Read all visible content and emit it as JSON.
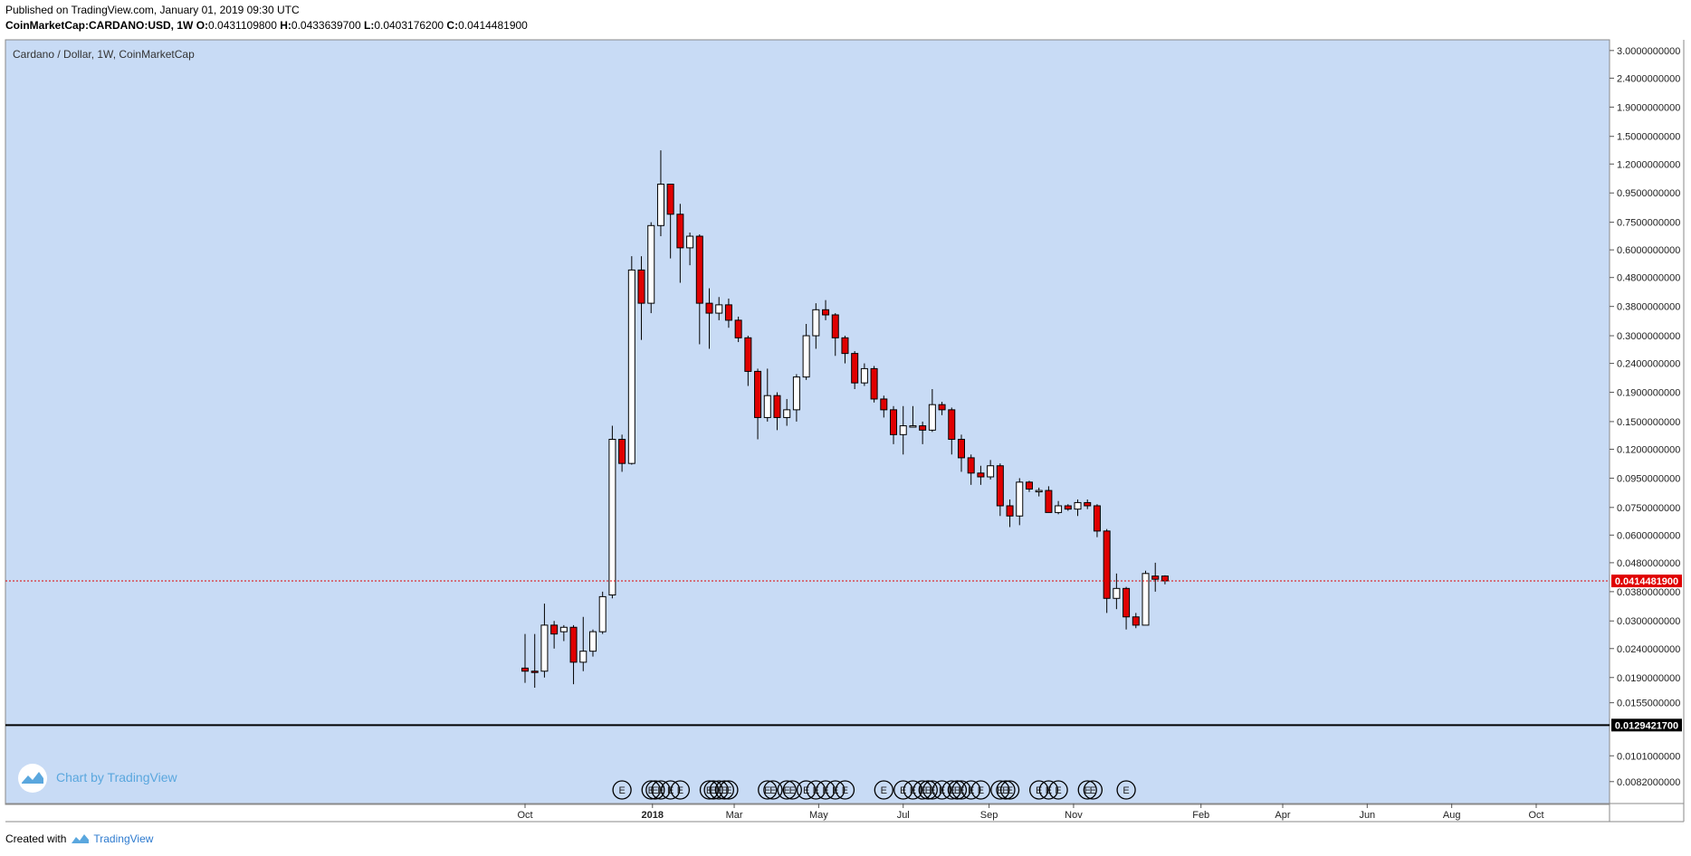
{
  "header": {
    "published": "Published on TradingView.com, January 01, 2019 09:30 UTC",
    "symbol": "CoinMarketCap:CARDANO:USD, 1W",
    "o_label": "O:",
    "o_value": "0.0431109800",
    "h_label": "H:",
    "h_value": "0.0433639700",
    "l_label": "L:",
    "l_value": "0.0403176200",
    "c_label": "C:",
    "c_value": "0.0414481900"
  },
  "footer": {
    "created_with": "Created with",
    "brand": "TradingView"
  },
  "watermark": "Chart by TradingView",
  "colors": {
    "background": "#c8dbf5",
    "up": "#ffffff",
    "down": "#e00000",
    "price_line": "#e00000",
    "support_line": "#000000"
  },
  "chart_data": {
    "type": "candlestick",
    "title": "Cardano / Dollar, 1W, CoinMarketCap",
    "y_scale": "log",
    "ylim": [
      0.0075,
      3.2
    ],
    "y_ticks": [
      "3.0000000000",
      "2.4000000000",
      "1.9000000000",
      "1.5000000000",
      "1.2000000000",
      "0.9500000000",
      "0.7500000000",
      "0.6000000000",
      "0.4800000000",
      "0.3800000000",
      "0.3000000000",
      "0.2400000000",
      "0.1900000000",
      "0.1500000000",
      "0.1200000000",
      "0.0950000000",
      "0.0750000000",
      "0.0600000000",
      "0.0480000000",
      "0.0380000000",
      "0.0300000000",
      "0.0240000000",
      "0.0190000000",
      "0.0155000000",
      "0.0101000000",
      "0.0082000000"
    ],
    "x_ticks": [
      {
        "label": "Oct",
        "date": "2017-10-01",
        "bold": false
      },
      {
        "label": "2018",
        "date": "2018-01-01",
        "bold": true
      },
      {
        "label": "Mar",
        "date": "2018-03-01",
        "bold": false
      },
      {
        "label": "May",
        "date": "2018-05-01",
        "bold": false
      },
      {
        "label": "Jul",
        "date": "2018-07-01",
        "bold": false
      },
      {
        "label": "Sep",
        "date": "2018-09-01",
        "bold": false
      },
      {
        "label": "Nov",
        "date": "2018-11-01",
        "bold": false
      },
      {
        "label": "Feb",
        "date": "2019-02-01",
        "bold": false
      },
      {
        "label": "Apr",
        "date": "2019-04-01",
        "bold": false
      },
      {
        "label": "Jun",
        "date": "2019-06-01",
        "bold": false
      },
      {
        "label": "Aug",
        "date": "2019-08-01",
        "bold": false
      },
      {
        "label": "Oct",
        "date": "2019-10-01",
        "bold": false
      }
    ],
    "current_price": "0.0414481900",
    "support_level": "0.0129421700",
    "event_marker_label": "E",
    "event_dates": [
      "2017-12-10",
      "2017-12-31",
      "2018-01-03",
      "2018-01-07",
      "2018-01-14",
      "2018-01-21",
      "2018-02-11",
      "2018-02-14",
      "2018-02-18",
      "2018-02-22",
      "2018-02-25",
      "2018-03-25",
      "2018-03-29",
      "2018-04-08",
      "2018-04-12",
      "2018-04-22",
      "2018-04-29",
      "2018-05-06",
      "2018-05-13",
      "2018-05-20",
      "2018-06-17",
      "2018-07-01",
      "2018-07-08",
      "2018-07-15",
      "2018-07-19",
      "2018-07-22",
      "2018-07-29",
      "2018-08-05",
      "2018-08-09",
      "2018-08-12",
      "2018-08-19",
      "2018-08-26",
      "2018-09-09",
      "2018-09-13",
      "2018-09-16",
      "2018-10-07",
      "2018-10-14",
      "2018-10-21",
      "2018-11-11",
      "2018-11-15",
      "2018-12-09"
    ],
    "candles": [
      {
        "date": "2017-10-01",
        "o": 0.0205,
        "h": 0.027,
        "l": 0.0182,
        "c": 0.02
      },
      {
        "date": "2017-10-08",
        "o": 0.02,
        "h": 0.027,
        "l": 0.0175,
        "c": 0.0198
      },
      {
        "date": "2017-10-15",
        "o": 0.02,
        "h": 0.0345,
        "l": 0.019,
        "c": 0.029
      },
      {
        "date": "2017-10-22",
        "o": 0.029,
        "h": 0.03,
        "l": 0.024,
        "c": 0.027
      },
      {
        "date": "2017-10-29",
        "o": 0.0275,
        "h": 0.029,
        "l": 0.0255,
        "c": 0.0285
      },
      {
        "date": "2017-11-05",
        "o": 0.0285,
        "h": 0.029,
        "l": 0.018,
        "c": 0.0215
      },
      {
        "date": "2017-11-12",
        "o": 0.0215,
        "h": 0.031,
        "l": 0.02,
        "c": 0.0235
      },
      {
        "date": "2017-11-19",
        "o": 0.0235,
        "h": 0.028,
        "l": 0.0225,
        "c": 0.0275
      },
      {
        "date": "2017-11-26",
        "o": 0.0275,
        "h": 0.038,
        "l": 0.027,
        "c": 0.0365
      },
      {
        "date": "2017-12-03",
        "o": 0.037,
        "h": 0.145,
        "l": 0.036,
        "c": 0.13
      },
      {
        "date": "2017-12-10",
        "o": 0.13,
        "h": 0.135,
        "l": 0.1,
        "c": 0.107
      },
      {
        "date": "2017-12-17",
        "o": 0.107,
        "h": 0.57,
        "l": 0.106,
        "c": 0.51
      },
      {
        "date": "2017-12-24",
        "o": 0.51,
        "h": 0.57,
        "l": 0.29,
        "c": 0.39
      },
      {
        "date": "2017-12-31",
        "o": 0.39,
        "h": 0.75,
        "l": 0.36,
        "c": 0.73
      },
      {
        "date": "2018-01-07",
        "o": 0.73,
        "h": 1.34,
        "l": 0.67,
        "c": 1.02
      },
      {
        "date": "2018-01-14",
        "o": 1.02,
        "h": 1.02,
        "l": 0.56,
        "c": 0.8
      },
      {
        "date": "2018-01-21",
        "o": 0.8,
        "h": 0.87,
        "l": 0.46,
        "c": 0.61
      },
      {
        "date": "2018-01-28",
        "o": 0.61,
        "h": 0.69,
        "l": 0.53,
        "c": 0.67
      },
      {
        "date": "2018-02-04",
        "o": 0.67,
        "h": 0.68,
        "l": 0.28,
        "c": 0.39
      },
      {
        "date": "2018-02-11",
        "o": 0.39,
        "h": 0.44,
        "l": 0.27,
        "c": 0.36
      },
      {
        "date": "2018-02-18",
        "o": 0.36,
        "h": 0.41,
        "l": 0.34,
        "c": 0.385
      },
      {
        "date": "2018-02-25",
        "o": 0.385,
        "h": 0.405,
        "l": 0.32,
        "c": 0.34
      },
      {
        "date": "2018-03-04",
        "o": 0.34,
        "h": 0.35,
        "l": 0.285,
        "c": 0.295
      },
      {
        "date": "2018-03-11",
        "o": 0.295,
        "h": 0.3,
        "l": 0.2,
        "c": 0.225
      },
      {
        "date": "2018-03-18",
        "o": 0.225,
        "h": 0.23,
        "l": 0.13,
        "c": 0.155
      },
      {
        "date": "2018-03-25",
        "o": 0.155,
        "h": 0.23,
        "l": 0.15,
        "c": 0.185
      },
      {
        "date": "2018-04-01",
        "o": 0.185,
        "h": 0.19,
        "l": 0.14,
        "c": 0.155
      },
      {
        "date": "2018-04-08",
        "o": 0.155,
        "h": 0.18,
        "l": 0.145,
        "c": 0.165
      },
      {
        "date": "2018-04-15",
        "o": 0.165,
        "h": 0.22,
        "l": 0.15,
        "c": 0.215
      },
      {
        "date": "2018-04-22",
        "o": 0.215,
        "h": 0.33,
        "l": 0.21,
        "c": 0.3
      },
      {
        "date": "2018-04-29",
        "o": 0.3,
        "h": 0.39,
        "l": 0.27,
        "c": 0.37
      },
      {
        "date": "2018-05-06",
        "o": 0.37,
        "h": 0.4,
        "l": 0.34,
        "c": 0.355
      },
      {
        "date": "2018-05-13",
        "o": 0.355,
        "h": 0.36,
        "l": 0.255,
        "c": 0.295
      },
      {
        "date": "2018-05-20",
        "o": 0.295,
        "h": 0.3,
        "l": 0.24,
        "c": 0.26
      },
      {
        "date": "2018-05-27",
        "o": 0.26,
        "h": 0.265,
        "l": 0.195,
        "c": 0.205
      },
      {
        "date": "2018-06-03",
        "o": 0.205,
        "h": 0.24,
        "l": 0.2,
        "c": 0.23
      },
      {
        "date": "2018-06-10",
        "o": 0.23,
        "h": 0.235,
        "l": 0.175,
        "c": 0.18
      },
      {
        "date": "2018-06-17",
        "o": 0.18,
        "h": 0.185,
        "l": 0.155,
        "c": 0.165
      },
      {
        "date": "2018-06-24",
        "o": 0.165,
        "h": 0.17,
        "l": 0.125,
        "c": 0.135
      },
      {
        "date": "2018-07-01",
        "o": 0.135,
        "h": 0.17,
        "l": 0.115,
        "c": 0.145
      },
      {
        "date": "2018-07-08",
        "o": 0.145,
        "h": 0.17,
        "l": 0.145,
        "c": 0.145
      },
      {
        "date": "2018-07-15",
        "o": 0.145,
        "h": 0.15,
        "l": 0.125,
        "c": 0.14
      },
      {
        "date": "2018-07-22",
        "o": 0.14,
        "h": 0.195,
        "l": 0.138,
        "c": 0.172
      },
      {
        "date": "2018-07-29",
        "o": 0.172,
        "h": 0.176,
        "l": 0.158,
        "c": 0.165
      },
      {
        "date": "2018-08-05",
        "o": 0.165,
        "h": 0.168,
        "l": 0.115,
        "c": 0.13
      },
      {
        "date": "2018-08-12",
        "o": 0.13,
        "h": 0.135,
        "l": 0.1,
        "c": 0.112
      },
      {
        "date": "2018-08-19",
        "o": 0.112,
        "h": 0.115,
        "l": 0.09,
        "c": 0.099
      },
      {
        "date": "2018-08-26",
        "o": 0.099,
        "h": 0.105,
        "l": 0.09,
        "c": 0.096
      },
      {
        "date": "2018-09-02",
        "o": 0.096,
        "h": 0.11,
        "l": 0.094,
        "c": 0.105
      },
      {
        "date": "2018-09-09",
        "o": 0.105,
        "h": 0.107,
        "l": 0.07,
        "c": 0.076
      },
      {
        "date": "2018-09-16",
        "o": 0.076,
        "h": 0.08,
        "l": 0.064,
        "c": 0.07
      },
      {
        "date": "2018-09-23",
        "o": 0.07,
        "h": 0.095,
        "l": 0.065,
        "c": 0.092
      },
      {
        "date": "2018-09-30",
        "o": 0.092,
        "h": 0.093,
        "l": 0.085,
        "c": 0.087
      },
      {
        "date": "2018-10-07",
        "o": 0.086,
        "h": 0.088,
        "l": 0.082,
        "c": 0.086
      },
      {
        "date": "2018-10-14",
        "o": 0.086,
        "h": 0.089,
        "l": 0.072,
        "c": 0.072
      },
      {
        "date": "2018-10-21",
        "o": 0.072,
        "h": 0.079,
        "l": 0.071,
        "c": 0.076
      },
      {
        "date": "2018-10-28",
        "o": 0.076,
        "h": 0.077,
        "l": 0.073,
        "c": 0.074
      },
      {
        "date": "2018-11-04",
        "o": 0.074,
        "h": 0.08,
        "l": 0.07,
        "c": 0.078
      },
      {
        "date": "2018-11-11",
        "o": 0.078,
        "h": 0.08,
        "l": 0.074,
        "c": 0.076
      },
      {
        "date": "2018-11-18",
        "o": 0.076,
        "h": 0.077,
        "l": 0.059,
        "c": 0.062
      },
      {
        "date": "2018-11-25",
        "o": 0.062,
        "h": 0.063,
        "l": 0.032,
        "c": 0.036
      },
      {
        "date": "2018-12-02",
        "o": 0.036,
        "h": 0.044,
        "l": 0.033,
        "c": 0.039
      },
      {
        "date": "2018-12-09",
        "o": 0.039,
        "h": 0.0395,
        "l": 0.028,
        "c": 0.031
      },
      {
        "date": "2018-12-16",
        "o": 0.031,
        "h": 0.032,
        "l": 0.0283,
        "c": 0.029
      },
      {
        "date": "2018-12-23",
        "o": 0.029,
        "h": 0.045,
        "l": 0.029,
        "c": 0.044
      },
      {
        "date": "2018-12-30",
        "o": 0.0431,
        "h": 0.048,
        "l": 0.038,
        "c": 0.042
      },
      {
        "date": "2019-01-06",
        "o": 0.04311098,
        "h": 0.04336397,
        "l": 0.04031762,
        "c": 0.04144819
      }
    ]
  }
}
